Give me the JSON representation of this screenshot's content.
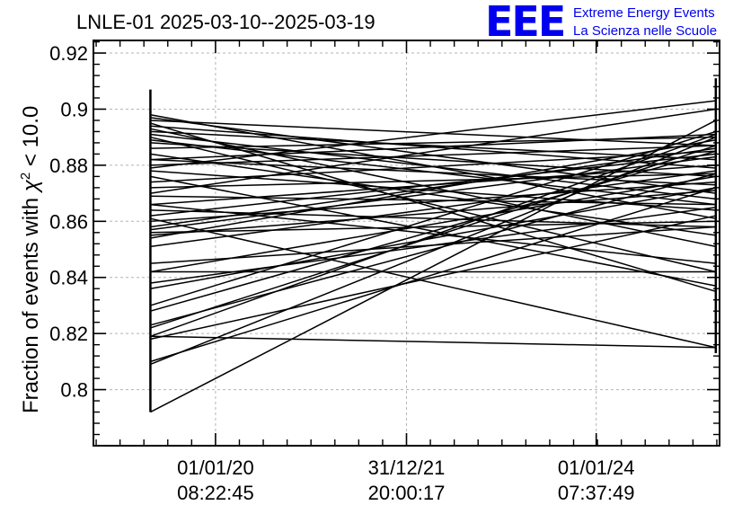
{
  "header": {
    "title": "LNLE-01 2025-03-10--2025-03-19",
    "logo": "EEE",
    "project_line1": "Extreme Energy Events",
    "project_line2": "La Scienza nelle Scuole"
  },
  "chart_data": {
    "type": "line",
    "title": "LNLE-01 2025-03-10--2025-03-19",
    "ylabel_prefix": "Fraction of events with ",
    "ylabel_chi": "χ",
    "ylabel_exp": "2",
    "ylabel_suffix": " < 10.0",
    "xlabel": "",
    "grid": true,
    "xlim": [
      0,
      100
    ],
    "ylim": [
      0.78,
      0.9245
    ],
    "y_ticks": [
      0.8,
      0.82,
      0.84,
      0.86,
      0.88,
      0.9,
      0.92
    ],
    "y_tick_labels": [
      "0.8",
      "0.82",
      "0.84",
      "0.86",
      "0.88",
      "0.9",
      "0.92"
    ],
    "x_ticks": [
      {
        "x": 19.5,
        "date": "01/01/20",
        "time": "08:22:45"
      },
      {
        "x": 50.0,
        "date": "31/12/21",
        "time": "20:00:17"
      },
      {
        "x": 80.3,
        "date": "01/01/24",
        "time": "07:37:49"
      }
    ],
    "x_start": 9.1,
    "x_end": 99.4,
    "error_bars": [
      {
        "x": 9.1,
        "low": 0.792,
        "high": 0.907
      },
      {
        "x": 99.4,
        "low": 0.813,
        "high": 0.911
      }
    ],
    "segments": [
      [
        0.792,
        0.896
      ],
      [
        0.809,
        0.89
      ],
      [
        0.81,
        0.872
      ],
      [
        0.818,
        0.862
      ],
      [
        0.819,
        0.891
      ],
      [
        0.822,
        0.887
      ],
      [
        0.823,
        0.877
      ],
      [
        0.828,
        0.885
      ],
      [
        0.83,
        0.892
      ],
      [
        0.836,
        0.872
      ],
      [
        0.838,
        0.865
      ],
      [
        0.842,
        0.876
      ],
      [
        0.842,
        0.842
      ],
      [
        0.845,
        0.858
      ],
      [
        0.851,
        0.878
      ],
      [
        0.854,
        0.889
      ],
      [
        0.855,
        0.871
      ],
      [
        0.856,
        0.86
      ],
      [
        0.858,
        0.886
      ],
      [
        0.86,
        0.874
      ],
      [
        0.862,
        0.884
      ],
      [
        0.864,
        0.858
      ],
      [
        0.866,
        0.88
      ],
      [
        0.869,
        0.866
      ],
      [
        0.872,
        0.877
      ],
      [
        0.874,
        0.885
      ],
      [
        0.876,
        0.837
      ],
      [
        0.878,
        0.864
      ],
      [
        0.88,
        0.887
      ],
      [
        0.882,
        0.873
      ],
      [
        0.884,
        0.855
      ],
      [
        0.886,
        0.89
      ],
      [
        0.888,
        0.876
      ],
      [
        0.89,
        0.842
      ],
      [
        0.891,
        0.868
      ],
      [
        0.892,
        0.882
      ],
      [
        0.893,
        0.851
      ],
      [
        0.894,
        0.879
      ],
      [
        0.895,
        0.835
      ],
      [
        0.896,
        0.887
      ],
      [
        0.897,
        0.87
      ],
      [
        0.898,
        0.861
      ],
      [
        0.819,
        0.815
      ],
      [
        0.861,
        0.815
      ],
      [
        0.879,
        0.903
      ],
      [
        0.87,
        0.9
      ],
      [
        0.882,
        0.891
      ],
      [
        0.889,
        0.866
      ],
      [
        0.857,
        0.883
      ],
      [
        0.866,
        0.845
      ]
    ]
  }
}
